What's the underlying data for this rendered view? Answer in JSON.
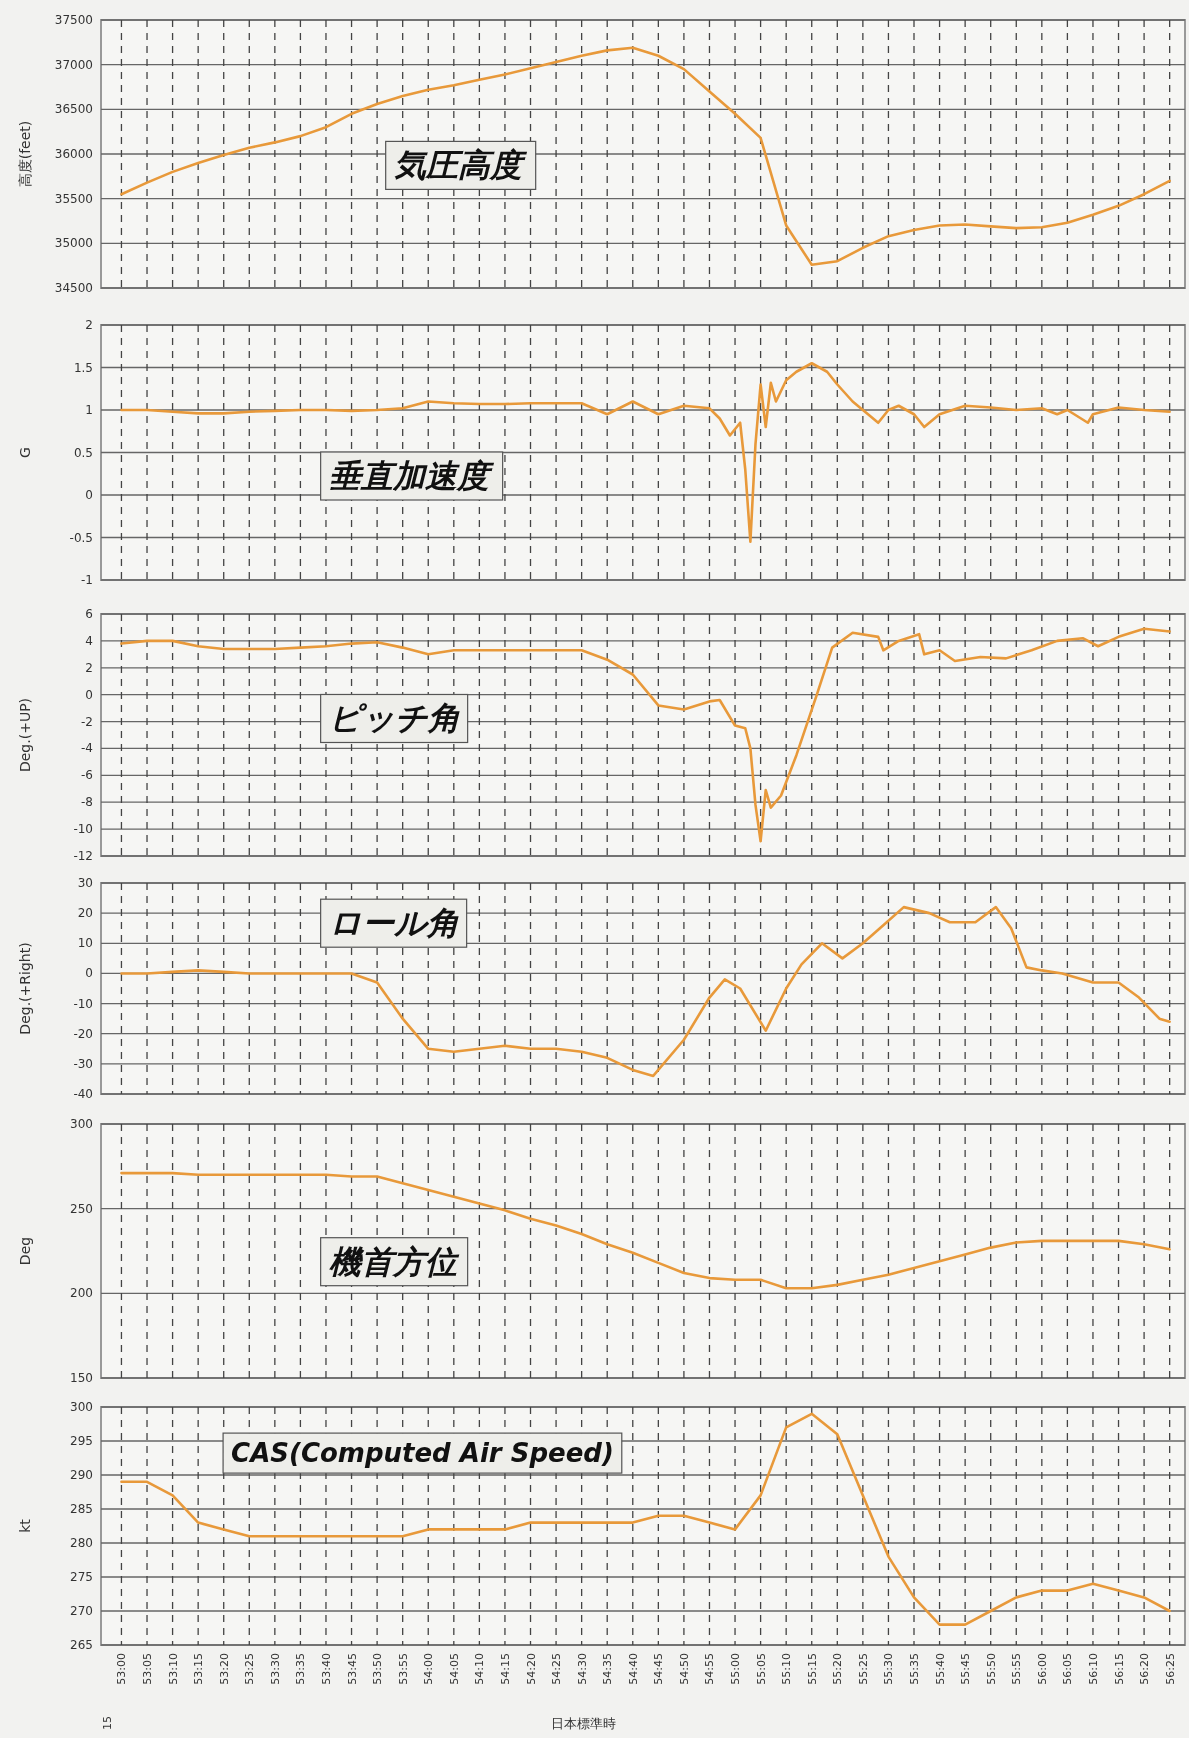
{
  "chart_data": [
    {
      "type": "line",
      "title": "気圧高度",
      "ylabel": "高度(feet)",
      "color": "#e8993a",
      "grid": true,
      "tick_labels": "y",
      "xlim": [
        52.933333,
        56.466667
      ],
      "ylim": [
        34500,
        37500
      ],
      "yticks": [
        34500,
        35000,
        35500,
        36000,
        36500,
        37000,
        37500
      ],
      "x": [
        53,
        53.083333,
        53.166667,
        53.25,
        53.333333,
        53.416667,
        53.5,
        53.583333,
        53.666667,
        53.75,
        53.833333,
        53.916667,
        54,
        54.083333,
        54.166667,
        54.25,
        54.333333,
        54.416667,
        54.5,
        54.583333,
        54.666667,
        54.75,
        54.833333,
        54.916667,
        55,
        55.083333,
        55.166667,
        55.25,
        55.333333,
        55.416667,
        55.5,
        55.583333,
        55.666667,
        55.75,
        55.833333,
        55.916667,
        56,
        56.083333,
        56.166667,
        56.25,
        56.333333,
        56.416667
      ],
      "values": [
        35550,
        35680,
        35800,
        35900,
        35990,
        36070,
        36130,
        36200,
        36300,
        36450,
        36560,
        36650,
        36720,
        36770,
        36830,
        36890,
        36960,
        37030,
        37100,
        37160,
        37190,
        37100,
        36950,
        36700,
        36450,
        36180,
        35200,
        34760,
        34800,
        34950,
        35080,
        35150,
        35200,
        35210,
        35190,
        35170,
        35180,
        35230,
        35320,
        35420,
        35550,
        35700
      ]
    },
    {
      "type": "line",
      "title": "垂直加速度",
      "ylabel": "G",
      "color": "#e8993a",
      "grid": true,
      "tick_labels": "y",
      "xlim": [
        52.933333,
        56.466667
      ],
      "ylim": [
        -1,
        2
      ],
      "yticks": [
        -1,
        -0.5,
        0,
        0.5,
        1,
        1.5,
        2
      ],
      "x": [
        53,
        53.083333,
        53.166667,
        53.25,
        53.333333,
        53.416667,
        53.5,
        53.583333,
        53.666667,
        53.75,
        53.833333,
        53.916667,
        54,
        54.083333,
        54.166667,
        54.25,
        54.333333,
        54.416667,
        54.5,
        54.583333,
        54.666667,
        54.75,
        54.833333,
        54.916667,
        54.95,
        54.983333,
        55.016667,
        55.033333,
        55.05,
        55.066667,
        55.083333,
        55.1,
        55.116667,
        55.133333,
        55.166667,
        55.2,
        55.25,
        55.3,
        55.333333,
        55.383333,
        55.416667,
        55.466667,
        55.5,
        55.533333,
        55.583333,
        55.616667,
        55.666667,
        55.75,
        55.833333,
        55.916667,
        56,
        56.05,
        56.083333,
        56.15,
        56.166667,
        56.25,
        56.333333,
        56.416667
      ],
      "values": [
        1.0,
        1.0,
        0.98,
        0.96,
        0.96,
        0.98,
        0.99,
        1.0,
        1.0,
        0.99,
        1.0,
        1.02,
        1.1,
        1.08,
        1.07,
        1.07,
        1.08,
        1.08,
        1.08,
        0.95,
        1.1,
        0.95,
        1.05,
        1.02,
        0.9,
        0.7,
        0.85,
        0.3,
        -0.55,
        0.6,
        1.3,
        0.8,
        1.32,
        1.1,
        1.35,
        1.45,
        1.55,
        1.45,
        1.3,
        1.1,
        1.0,
        0.85,
        1.0,
        1.05,
        0.95,
        0.8,
        0.95,
        1.05,
        1.03,
        1.0,
        1.02,
        0.95,
        1.0,
        0.85,
        0.95,
        1.03,
        1.0,
        0.98
      ]
    },
    {
      "type": "line",
      "title": "ピッチ角",
      "ylabel": "Deg.(+UP)",
      "color": "#e8993a",
      "grid": true,
      "tick_labels": "y",
      "xlim": [
        52.933333,
        56.466667
      ],
      "ylim": [
        -12,
        6
      ],
      "yticks": [
        -12,
        -10,
        -8,
        -6,
        -4,
        -2,
        0,
        2,
        4,
        6
      ],
      "x": [
        53,
        53.083333,
        53.166667,
        53.25,
        53.333333,
        53.416667,
        53.5,
        53.583333,
        53.666667,
        53.75,
        53.833333,
        53.916667,
        54,
        54.083333,
        54.166667,
        54.25,
        54.333333,
        54.416667,
        54.5,
        54.583333,
        54.666667,
        54.75,
        54.833333,
        54.916667,
        54.95,
        55,
        55.033333,
        55.05,
        55.066667,
        55.083333,
        55.1,
        55.116667,
        55.15,
        55.2,
        55.266667,
        55.316667,
        55.383333,
        55.466667,
        55.483333,
        55.533333,
        55.6,
        55.616667,
        55.666667,
        55.716667,
        55.8,
        55.883333,
        55.966667,
        56.05,
        56.133333,
        56.183333,
        56.25,
        56.333333,
        56.416667
      ],
      "values": [
        3.8,
        4.0,
        4.0,
        3.6,
        3.4,
        3.4,
        3.4,
        3.5,
        3.6,
        3.8,
        3.9,
        3.5,
        3.0,
        3.3,
        3.3,
        3.3,
        3.3,
        3.3,
        3.3,
        2.6,
        1.5,
        -0.8,
        -1.1,
        -0.5,
        -0.4,
        -2.3,
        -2.5,
        -4.0,
        -8.2,
        -10.9,
        -7.1,
        -8.4,
        -7.5,
        -4.5,
        0,
        3.5,
        4.6,
        4.3,
        3.3,
        4.0,
        4.5,
        3.0,
        3.3,
        2.5,
        2.8,
        2.7,
        3.3,
        4.0,
        4.2,
        3.6,
        4.3,
        4.9,
        4.7
      ]
    },
    {
      "type": "line",
      "title": "ロール角",
      "ylabel": "Deg.(+Right)",
      "color": "#e8993a",
      "grid": true,
      "tick_labels": "y",
      "xlim": [
        52.933333,
        56.466667
      ],
      "ylim": [
        -40,
        30
      ],
      "yticks": [
        -40,
        -30,
        -20,
        -10,
        0,
        10,
        20,
        30
      ],
      "x": [
        53,
        53.083333,
        53.166667,
        53.25,
        53.333333,
        53.416667,
        53.5,
        53.583333,
        53.666667,
        53.75,
        53.833333,
        53.916667,
        54,
        54.083333,
        54.166667,
        54.25,
        54.333333,
        54.416667,
        54.5,
        54.583333,
        54.666667,
        54.733333,
        54.833333,
        54.916667,
        54.966667,
        55.016667,
        55.1,
        55.166667,
        55.216667,
        55.283333,
        55.35,
        55.416667,
        55.483333,
        55.55,
        55.633333,
        55.7,
        55.783333,
        55.85,
        55.9,
        55.95,
        56,
        56.066667,
        56.166667,
        56.25,
        56.316667,
        56.383333,
        56.416667
      ],
      "values": [
        0,
        0,
        0.5,
        1,
        0.5,
        0,
        0,
        0,
        0,
        0,
        -3,
        -15,
        -25,
        -26,
        -25,
        -24,
        -25,
        -25,
        -26,
        -28,
        -32,
        -34,
        -22,
        -8,
        -2,
        -5,
        -19,
        -5,
        3,
        10,
        5,
        10,
        16,
        22,
        20,
        17,
        17,
        22,
        15,
        2,
        1,
        0,
        -3,
        -3,
        -8,
        -15,
        -16
      ]
    },
    {
      "type": "line",
      "title": "機首方位",
      "ylabel": "Deg",
      "color": "#e8993a",
      "grid": true,
      "tick_labels": "y",
      "xlim": [
        52.933333,
        56.466667
      ],
      "ylim": [
        150,
        300
      ],
      "yticks": [
        150,
        200,
        250,
        300
      ],
      "x": [
        53,
        53.083333,
        53.166667,
        53.25,
        53.333333,
        53.416667,
        53.5,
        53.583333,
        53.666667,
        53.75,
        53.833333,
        53.916667,
        54,
        54.083333,
        54.166667,
        54.25,
        54.333333,
        54.416667,
        54.5,
        54.583333,
        54.666667,
        54.75,
        54.833333,
        54.916667,
        55,
        55.083333,
        55.166667,
        55.25,
        55.333333,
        55.416667,
        55.5,
        55.583333,
        55.666667,
        55.75,
        55.833333,
        55.916667,
        56,
        56.083333,
        56.166667,
        56.25,
        56.333333,
        56.416667
      ],
      "values": [
        271,
        271,
        271,
        270,
        270,
        270,
        270,
        270,
        270,
        269,
        269,
        265,
        261,
        257,
        253,
        249,
        244,
        240,
        235,
        229,
        224,
        218,
        212,
        209,
        208,
        208,
        203,
        203,
        205,
        208,
        211,
        215,
        219,
        223,
        227,
        230,
        231,
        231,
        231,
        231,
        229,
        226
      ]
    },
    {
      "type": "line",
      "title": "CAS(Computed Air Speed)",
      "ylabel": "kt",
      "xlabel": "日本標準時",
      "color": "#e8993a",
      "grid": true,
      "annotations": [
        "15"
      ],
      "xlim": [
        52.933333,
        56.466667
      ],
      "ylim": [
        265,
        300
      ],
      "yticks": [
        265,
        270,
        275,
        280,
        285,
        290,
        295,
        300
      ],
      "xticks": [
        {
          "value": 53,
          "label": "53:00"
        },
        {
          "value": 53.083333,
          "label": "53:05"
        },
        {
          "value": 53.166667,
          "label": "53:10"
        },
        {
          "value": 53.25,
          "label": "53:15"
        },
        {
          "value": 53.333333,
          "label": "53:20"
        },
        {
          "value": 53.416667,
          "label": "53:25"
        },
        {
          "value": 53.5,
          "label": "53:30"
        },
        {
          "value": 53.583333,
          "label": "53:35"
        },
        {
          "value": 53.666667,
          "label": "53:40"
        },
        {
          "value": 53.75,
          "label": "53:45"
        },
        {
          "value": 53.833333,
          "label": "53:50"
        },
        {
          "value": 53.916667,
          "label": "53:55"
        },
        {
          "value": 54,
          "label": "54:00"
        },
        {
          "value": 54.083333,
          "label": "54:05"
        },
        {
          "value": 54.166667,
          "label": "54:10"
        },
        {
          "value": 54.25,
          "label": "54:15"
        },
        {
          "value": 54.333333,
          "label": "54:20"
        },
        {
          "value": 54.416667,
          "label": "54:25"
        },
        {
          "value": 54.5,
          "label": "54:30"
        },
        {
          "value": 54.583333,
          "label": "54:35"
        },
        {
          "value": 54.666667,
          "label": "54:40"
        },
        {
          "value": 54.75,
          "label": "54:45"
        },
        {
          "value": 54.833333,
          "label": "54:50"
        },
        {
          "value": 54.916667,
          "label": "54:55"
        },
        {
          "value": 55,
          "label": "55:00"
        },
        {
          "value": 55.083333,
          "label": "55:05"
        },
        {
          "value": 55.166667,
          "label": "55:10"
        },
        {
          "value": 55.25,
          "label": "55:15"
        },
        {
          "value": 55.333333,
          "label": "55:20"
        },
        {
          "value": 55.416667,
          "label": "55:25"
        },
        {
          "value": 55.5,
          "label": "55:30"
        },
        {
          "value": 55.583333,
          "label": "55:35"
        },
        {
          "value": 55.666667,
          "label": "55:40"
        },
        {
          "value": 55.75,
          "label": "55:45"
        },
        {
          "value": 55.833333,
          "label": "55:50"
        },
        {
          "value": 55.916667,
          "label": "55:55"
        },
        {
          "value": 56,
          "label": "56:00"
        },
        {
          "value": 56.083333,
          "label": "56:05"
        },
        {
          "value": 56.166667,
          "label": "56:10"
        },
        {
          "value": 56.25,
          "label": "56:15"
        },
        {
          "value": 56.333333,
          "label": "56:20"
        },
        {
          "value": 56.416667,
          "label": "56:25"
        }
      ],
      "x": [
        53,
        53.083333,
        53.166667,
        53.25,
        53.333333,
        53.416667,
        53.5,
        53.583333,
        53.666667,
        53.75,
        53.833333,
        53.916667,
        54,
        54.083333,
        54.166667,
        54.25,
        54.333333,
        54.416667,
        54.5,
        54.583333,
        54.666667,
        54.75,
        54.833333,
        54.916667,
        55,
        55.083333,
        55.166667,
        55.25,
        55.333333,
        55.416667,
        55.5,
        55.583333,
        55.666667,
        55.75,
        55.833333,
        55.916667,
        56,
        56.083333,
        56.166667,
        56.25,
        56.333333,
        56.416667
      ],
      "values": [
        289,
        289,
        287,
        283,
        282,
        281,
        281,
        281,
        281,
        281,
        281,
        281,
        282,
        282,
        282,
        282,
        283,
        283,
        283,
        283,
        283,
        284,
        284,
        283,
        282,
        287,
        297,
        299,
        296,
        287,
        278,
        272,
        268,
        268,
        270,
        272,
        273,
        273,
        274,
        273,
        272,
        270
      ]
    }
  ]
}
